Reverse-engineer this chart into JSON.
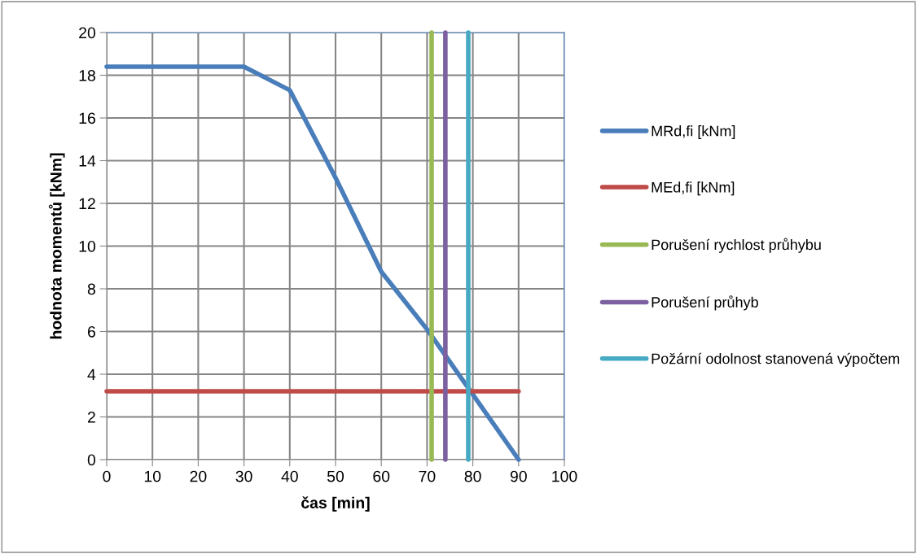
{
  "chart_data": {
    "type": "line",
    "xlabel": "čas [min]",
    "ylabel": "hodnota momentů [kNm]",
    "xlim": [
      0,
      100
    ],
    "xticks": [
      0,
      10,
      20,
      30,
      40,
      50,
      60,
      70,
      80,
      90,
      100
    ],
    "ylim": [
      0,
      20
    ],
    "yticks": [
      0,
      2,
      4,
      6,
      8,
      10,
      12,
      14,
      16,
      18,
      20
    ],
    "grid": true,
    "legend": "right",
    "marker": "none",
    "line_style": "solid",
    "series": [
      {
        "name": "MRd,fi [kNm]",
        "color": "#4a7ebb",
        "x": [
          0,
          30,
          40,
          50,
          60,
          70,
          90
        ],
        "values": [
          18.4,
          18.4,
          17.3,
          13.2,
          8.8,
          6.1,
          0
        ]
      },
      {
        "name": "MEd,fi [kNm]",
        "color": "#be4b48",
        "x": [
          0,
          90
        ],
        "values": [
          3.2,
          3.2
        ]
      },
      {
        "name": "Porušení rychlost průhybu",
        "color": "#98b954",
        "x": [
          71,
          71
        ],
        "values": [
          0,
          20
        ]
      },
      {
        "name": "Porušení průhyb",
        "color": "#7d60a0",
        "x": [
          74,
          74
        ],
        "values": [
          0,
          20
        ]
      },
      {
        "name": "Požární odolnost stanovená výpočtem",
        "color": "#46aac5",
        "x": [
          79,
          79
        ],
        "values": [
          0,
          20
        ]
      }
    ]
  }
}
